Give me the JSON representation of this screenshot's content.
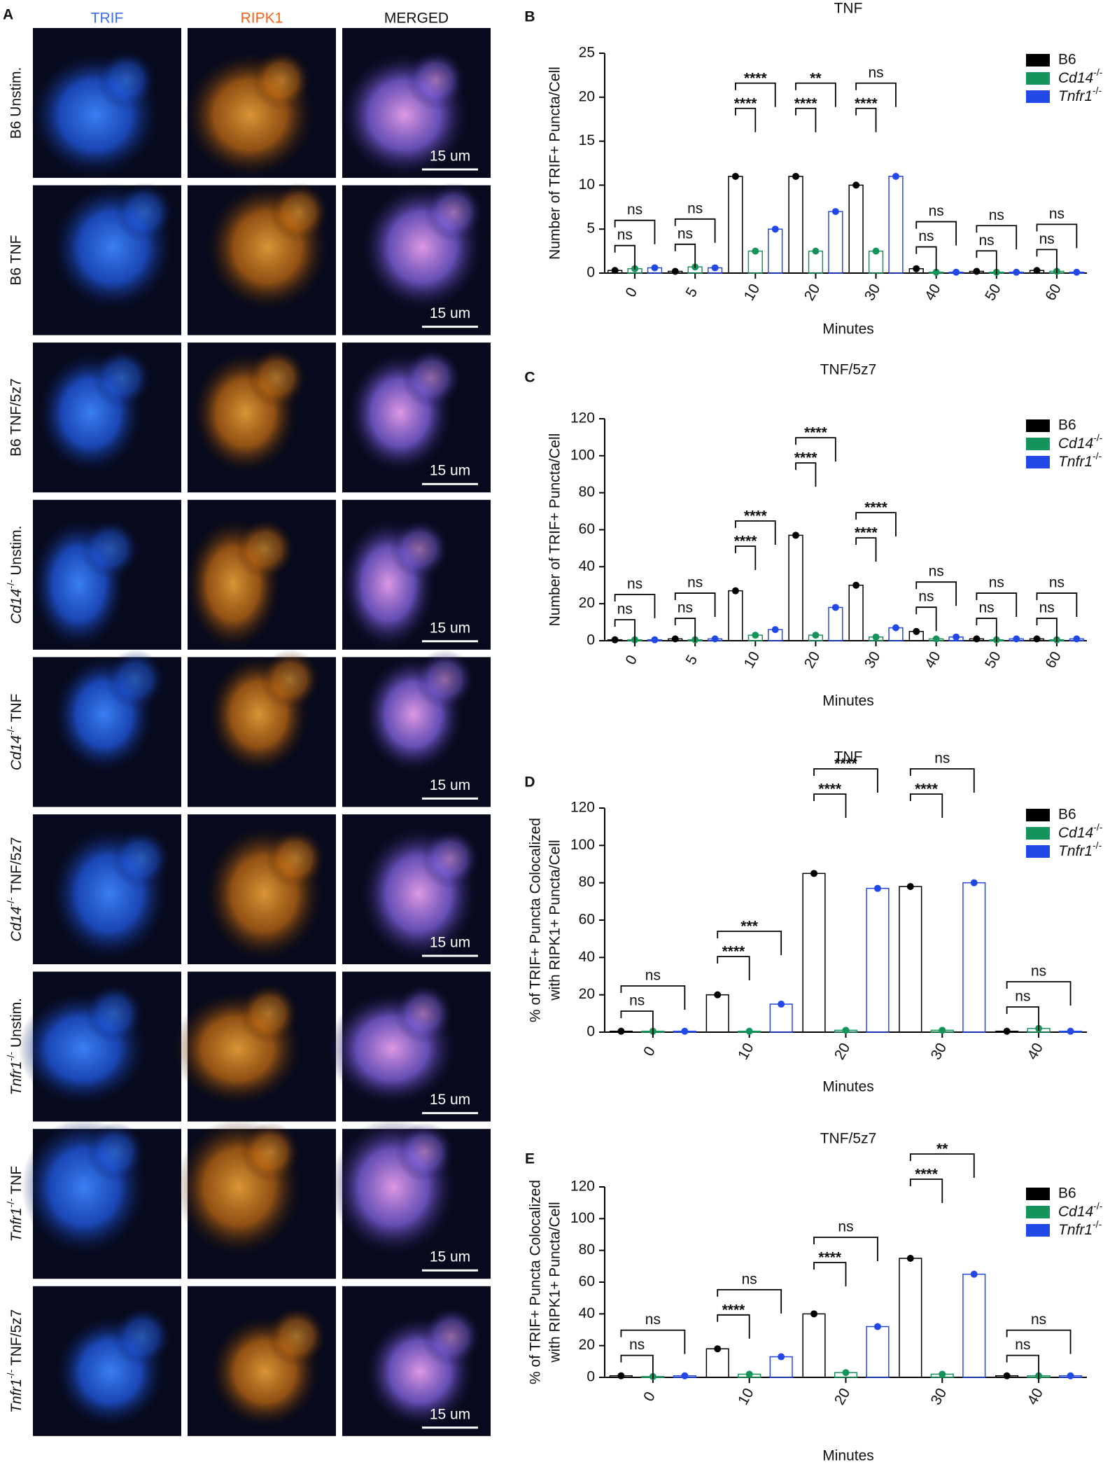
{
  "panel_a": {
    "label": "A",
    "columns": [
      {
        "name": "TRIF",
        "color": "#3a6cf4"
      },
      {
        "name": "RIPK1",
        "color": "#f0641e"
      },
      {
        "name": "MERGED",
        "color": "#111111"
      }
    ],
    "rows": [
      "B6 Unstim.",
      "B6 TNF",
      "B6 TNF/5z7",
      "Cd14-/- Unstim.",
      "Cd14-/- TNF",
      "Cd14-/- TNF/5z7",
      "Tnfr1-/- Unstim.",
      "Tnfr1-/- TNF",
      "Tnfr1-/- TNF/5z7"
    ],
    "scale_bar": "15 um"
  },
  "chart_data": [
    {
      "type": "bar",
      "panel_label": "B",
      "title": "TNF",
      "x_label": "Minutes",
      "y_label": [
        "Number of TRIF+ Puncta/Cell"
      ],
      "categories": [
        "0",
        "5",
        "10",
        "20",
        "30",
        "40",
        "50",
        "60"
      ],
      "series": [
        {
          "name": "B6",
          "color": "#000000",
          "values": [
            0.3,
            0.2,
            11,
            11,
            10,
            0.5,
            0.2,
            0.3
          ]
        },
        {
          "name": "Cd14-/-",
          "color": "#14935a",
          "values": [
            0.5,
            0.7,
            2.5,
            2.5,
            2.5,
            0.1,
            0.1,
            0.2
          ]
        },
        {
          "name": "Tnfr1-/-",
          "color": "#2348e8",
          "values": [
            0.6,
            0.6,
            5,
            7,
            11,
            0.1,
            0.1,
            0.1
          ]
        }
      ],
      "ylim": [
        0,
        25
      ],
      "yticks": [
        0,
        5,
        10,
        15,
        20,
        25
      ],
      "comparisons": [
        {
          "category": "0",
          "pair": [
            "B6",
            "Cd14-/-"
          ],
          "label": "ns"
        },
        {
          "category": "0",
          "pair": [
            "B6",
            "Tnfr1-/-"
          ],
          "label": "ns"
        },
        {
          "category": "5",
          "pair": [
            "B6",
            "Cd14-/-"
          ],
          "label": "ns"
        },
        {
          "category": "5",
          "pair": [
            "B6",
            "Tnfr1-/-"
          ],
          "label": "ns"
        },
        {
          "category": "10",
          "pair": [
            "B6",
            "Cd14-/-"
          ],
          "label": "****"
        },
        {
          "category": "10",
          "pair": [
            "B6",
            "Tnfr1-/-"
          ],
          "label": "****"
        },
        {
          "category": "20",
          "pair": [
            "B6",
            "Cd14-/-"
          ],
          "label": "****"
        },
        {
          "category": "20",
          "pair": [
            "B6",
            "Tnfr1-/-"
          ],
          "label": "**"
        },
        {
          "category": "30",
          "pair": [
            "B6",
            "Cd14-/-"
          ],
          "label": "****"
        },
        {
          "category": "30",
          "pair": [
            "B6",
            "Tnfr1-/-"
          ],
          "label": "ns"
        },
        {
          "category": "40",
          "pair": [
            "B6",
            "Cd14-/-"
          ],
          "label": "ns"
        },
        {
          "category": "40",
          "pair": [
            "B6",
            "Tnfr1-/-"
          ],
          "label": "ns"
        },
        {
          "category": "50",
          "pair": [
            "B6",
            "Cd14-/-"
          ],
          "label": "ns"
        },
        {
          "category": "50",
          "pair": [
            "B6",
            "Tnfr1-/-"
          ],
          "label": "ns"
        },
        {
          "category": "60",
          "pair": [
            "B6",
            "Cd14-/-"
          ],
          "label": "ns"
        },
        {
          "category": "60",
          "pair": [
            "B6",
            "Tnfr1-/-"
          ],
          "label": "ns"
        }
      ]
    },
    {
      "type": "bar",
      "panel_label": "C",
      "title": "TNF/5z7",
      "x_label": "Minutes",
      "y_label": [
        "Number of TRIF+ Puncta/Cell"
      ],
      "categories": [
        "0",
        "5",
        "10",
        "20",
        "30",
        "40",
        "50",
        "60"
      ],
      "series": [
        {
          "name": "B6",
          "color": "#000000",
          "values": [
            0.5,
            1,
            27,
            57,
            30,
            5,
            1,
            1
          ]
        },
        {
          "name": "Cd14-/-",
          "color": "#14935a",
          "values": [
            0.5,
            0.5,
            3,
            3,
            2,
            1,
            0.5,
            0.5
          ]
        },
        {
          "name": "Tnfr1-/-",
          "color": "#2348e8",
          "values": [
            0.5,
            1,
            6,
            18,
            7,
            2,
            1,
            1
          ]
        }
      ],
      "ylim": [
        0,
        120
      ],
      "yticks": [
        0,
        20,
        40,
        60,
        80,
        100,
        120
      ],
      "comparisons": [
        {
          "category": "0",
          "pair": [
            "B6",
            "Cd14-/-"
          ],
          "label": "ns"
        },
        {
          "category": "0",
          "pair": [
            "B6",
            "Tnfr1-/-"
          ],
          "label": "ns"
        },
        {
          "category": "5",
          "pair": [
            "B6",
            "Cd14-/-"
          ],
          "label": "ns"
        },
        {
          "category": "5",
          "pair": [
            "B6",
            "Tnfr1-/-"
          ],
          "label": "ns"
        },
        {
          "category": "10",
          "pair": [
            "B6",
            "Cd14-/-"
          ],
          "label": "****"
        },
        {
          "category": "10",
          "pair": [
            "B6",
            "Tnfr1-/-"
          ],
          "label": "****"
        },
        {
          "category": "20",
          "pair": [
            "B6",
            "Cd14-/-"
          ],
          "label": "****"
        },
        {
          "category": "20",
          "pair": [
            "B6",
            "Tnfr1-/-"
          ],
          "label": "****"
        },
        {
          "category": "30",
          "pair": [
            "B6",
            "Cd14-/-"
          ],
          "label": "****"
        },
        {
          "category": "30",
          "pair": [
            "B6",
            "Tnfr1-/-"
          ],
          "label": "****"
        },
        {
          "category": "40",
          "pair": [
            "B6",
            "Cd14-/-"
          ],
          "label": "ns"
        },
        {
          "category": "40",
          "pair": [
            "B6",
            "Tnfr1-/-"
          ],
          "label": "ns"
        },
        {
          "category": "50",
          "pair": [
            "B6",
            "Cd14-/-"
          ],
          "label": "ns"
        },
        {
          "category": "50",
          "pair": [
            "B6",
            "Tnfr1-/-"
          ],
          "label": "ns"
        },
        {
          "category": "60",
          "pair": [
            "B6",
            "Cd14-/-"
          ],
          "label": "ns"
        },
        {
          "category": "60",
          "pair": [
            "B6",
            "Tnfr1-/-"
          ],
          "label": "ns"
        }
      ]
    },
    {
      "type": "bar",
      "panel_label": "D",
      "title": "TNF",
      "x_label": "Minutes",
      "y_label": [
        "% of TRIF+ Puncta Colocalized",
        "with RIPK1+ Puncta/Cell"
      ],
      "categories": [
        "0",
        "10",
        "20",
        "30",
        "40"
      ],
      "series": [
        {
          "name": "B6",
          "color": "#000000",
          "values": [
            0.5,
            20,
            85,
            78,
            0.5
          ]
        },
        {
          "name": "Cd14-/-",
          "color": "#14935a",
          "values": [
            0.5,
            0.5,
            1,
            1,
            2
          ]
        },
        {
          "name": "Tnfr1-/-",
          "color": "#2348e8",
          "values": [
            0.5,
            15,
            77,
            80,
            0.5
          ]
        }
      ],
      "ylim": [
        0,
        120
      ],
      "yticks": [
        0,
        20,
        40,
        60,
        80,
        100,
        120
      ],
      "comparisons": [
        {
          "category": "0",
          "pair": [
            "B6",
            "Cd14-/-"
          ],
          "label": "ns"
        },
        {
          "category": "0",
          "pair": [
            "B6",
            "Tnfr1-/-"
          ],
          "label": "ns"
        },
        {
          "category": "10",
          "pair": [
            "B6",
            "Cd14-/-"
          ],
          "label": "****"
        },
        {
          "category": "10",
          "pair": [
            "B6",
            "Tnfr1-/-"
          ],
          "label": "***"
        },
        {
          "category": "20",
          "pair": [
            "B6",
            "Cd14-/-"
          ],
          "label": "****"
        },
        {
          "category": "20",
          "pair": [
            "B6",
            "Tnfr1-/-"
          ],
          "label": "****"
        },
        {
          "category": "30",
          "pair": [
            "B6",
            "Cd14-/-"
          ],
          "label": "****"
        },
        {
          "category": "30",
          "pair": [
            "B6",
            "Tnfr1-/-"
          ],
          "label": "ns"
        },
        {
          "category": "40",
          "pair": [
            "B6",
            "Cd14-/-"
          ],
          "label": "ns"
        },
        {
          "category": "40",
          "pair": [
            "B6",
            "Tnfr1-/-"
          ],
          "label": "ns"
        }
      ]
    },
    {
      "type": "bar",
      "panel_label": "E",
      "title": "TNF/5z7",
      "x_label": "Minutes",
      "y_label": [
        "% of TRIF+ Puncta Colocalized",
        "with RIPK1+ Puncta/Cell"
      ],
      "categories": [
        "0",
        "10",
        "20",
        "30",
        "40"
      ],
      "series": [
        {
          "name": "B6",
          "color": "#000000",
          "values": [
            1,
            18,
            40,
            75,
            1
          ]
        },
        {
          "name": "Cd14-/-",
          "color": "#14935a",
          "values": [
            0.5,
            2,
            3,
            2,
            1
          ]
        },
        {
          "name": "Tnfr1-/-",
          "color": "#2348e8",
          "values": [
            1,
            13,
            32,
            65,
            1
          ]
        }
      ],
      "ylim": [
        0,
        120
      ],
      "yticks": [
        0,
        20,
        40,
        60,
        80,
        100,
        120
      ],
      "comparisons": [
        {
          "category": "0",
          "pair": [
            "B6",
            "Cd14-/-"
          ],
          "label": "ns"
        },
        {
          "category": "0",
          "pair": [
            "B6",
            "Tnfr1-/-"
          ],
          "label": "ns"
        },
        {
          "category": "10",
          "pair": [
            "B6",
            "Cd14-/-"
          ],
          "label": "****"
        },
        {
          "category": "10",
          "pair": [
            "B6",
            "Tnfr1-/-"
          ],
          "label": "ns"
        },
        {
          "category": "20",
          "pair": [
            "B6",
            "Cd14-/-"
          ],
          "label": "****"
        },
        {
          "category": "20",
          "pair": [
            "B6",
            "Tnfr1-/-"
          ],
          "label": "ns"
        },
        {
          "category": "30",
          "pair": [
            "B6",
            "Cd14-/-"
          ],
          "label": "****"
        },
        {
          "category": "30",
          "pair": [
            "B6",
            "Tnfr1-/-"
          ],
          "label": "**"
        },
        {
          "category": "40",
          "pair": [
            "B6",
            "Cd14-/-"
          ],
          "label": "ns"
        },
        {
          "category": "40",
          "pair": [
            "B6",
            "Tnfr1-/-"
          ],
          "label": "ns"
        }
      ]
    }
  ]
}
